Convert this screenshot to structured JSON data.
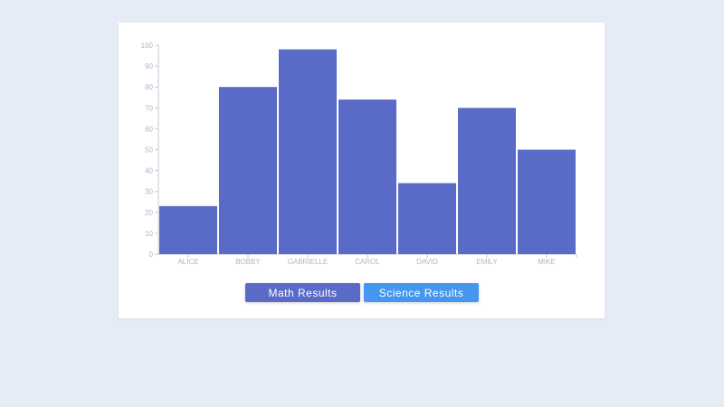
{
  "chart_data": {
    "type": "bar",
    "categories": [
      "ALICE",
      "BOBBY",
      "GABRIELLE",
      "CAROL",
      "DAVID",
      "EMILY",
      "MIKE"
    ],
    "values": [
      23,
      80,
      98,
      74,
      34,
      70,
      50
    ],
    "ylim": [
      0,
      100
    ],
    "yticks": [
      0,
      10,
      20,
      30,
      40,
      50,
      60,
      70,
      80,
      90,
      100
    ],
    "grid": false,
    "bar_color": "#5a6bc7",
    "axis_color": "#c5cad8"
  },
  "buttons": {
    "math": {
      "label": "Math Results",
      "color": "#5a6bc7"
    },
    "science": {
      "label": "Science Results",
      "color": "#4496ee"
    }
  }
}
